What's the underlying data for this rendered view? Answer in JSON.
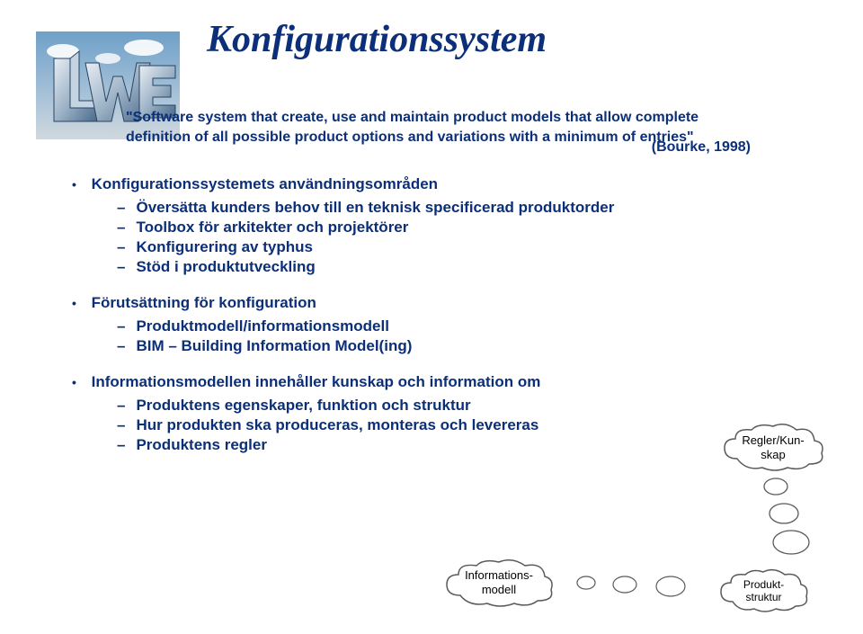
{
  "title": "Konfigurationssystem",
  "quote": {
    "text": "\"Software system that create, use and maintain product models that allow complete definition of all possible product options and variations with a minimum of entries\"",
    "citation": "(Bourke, 1998)"
  },
  "bullets": [
    {
      "text": "Konfigurationssystemets användningsområden",
      "sub": [
        "Översätta kunders behov till en teknisk specificerad produktorder",
        "Toolbox för arkitekter och projektörer",
        "Konfigurering av typhus",
        "Stöd i produktutveckling"
      ]
    },
    {
      "text": "Förutsättning för konfiguration",
      "sub": [
        "Produktmodell/informationsmodell",
        "BIM – Building Information Model(ing)"
      ]
    },
    {
      "text": "Informationsmodellen innehåller kunskap och information om",
      "sub": [
        "Produktens egenskaper, funktion och struktur",
        "Hur produkten ska produceras, monteras och levereras",
        "Produktens regler"
      ]
    }
  ],
  "clouds": {
    "regler": "Regler/Kun-\nskap",
    "info": "Informations-\nmodell",
    "produkt": "Produkt-\nstruktur"
  },
  "colors": {
    "primary": "#0b2f78",
    "bg": "#ffffff"
  }
}
